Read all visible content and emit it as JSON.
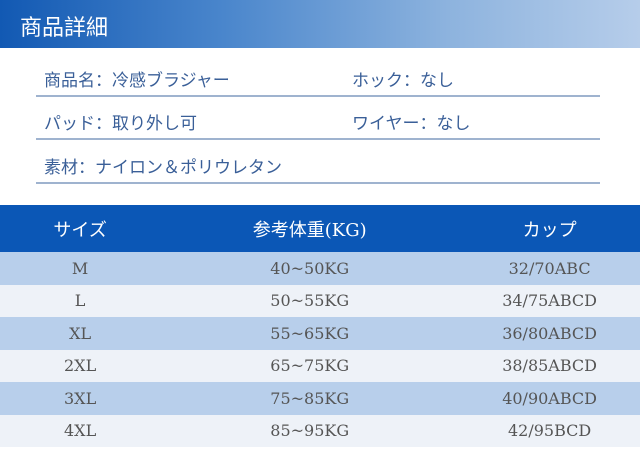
{
  "header": {
    "title": "商品詳細"
  },
  "info": [
    {
      "left": "商品名：冷感ブラジャー",
      "right": "ホック：なし"
    },
    {
      "left": "パッド：取り外し可",
      "right": "ワイヤー：なし"
    },
    {
      "left": "素材：ナイロン＆ポリウレタン",
      "right": ""
    }
  ],
  "table": {
    "headers": [
      "サイズ",
      "参考体重(KG)",
      "カップ"
    ],
    "rows": [
      [
        "M",
        "40~50KG",
        "32/70ABC"
      ],
      [
        "L",
        "50~55KG",
        "34/75ABCD"
      ],
      [
        "XL",
        "55~65KG",
        "36/80ABCD"
      ],
      [
        "2XL",
        "65~75KG",
        "38/85ABCD"
      ],
      [
        "3XL",
        "75~85KG",
        "40/90ABCD"
      ],
      [
        "4XL",
        "85~95KG",
        "42/95BCD"
      ]
    ]
  },
  "colors": {
    "header_dark": "#0b57b6",
    "row_alt": "#b8cfeb",
    "row_light": "#eef2f8",
    "text_blue": "#3a5f98"
  }
}
